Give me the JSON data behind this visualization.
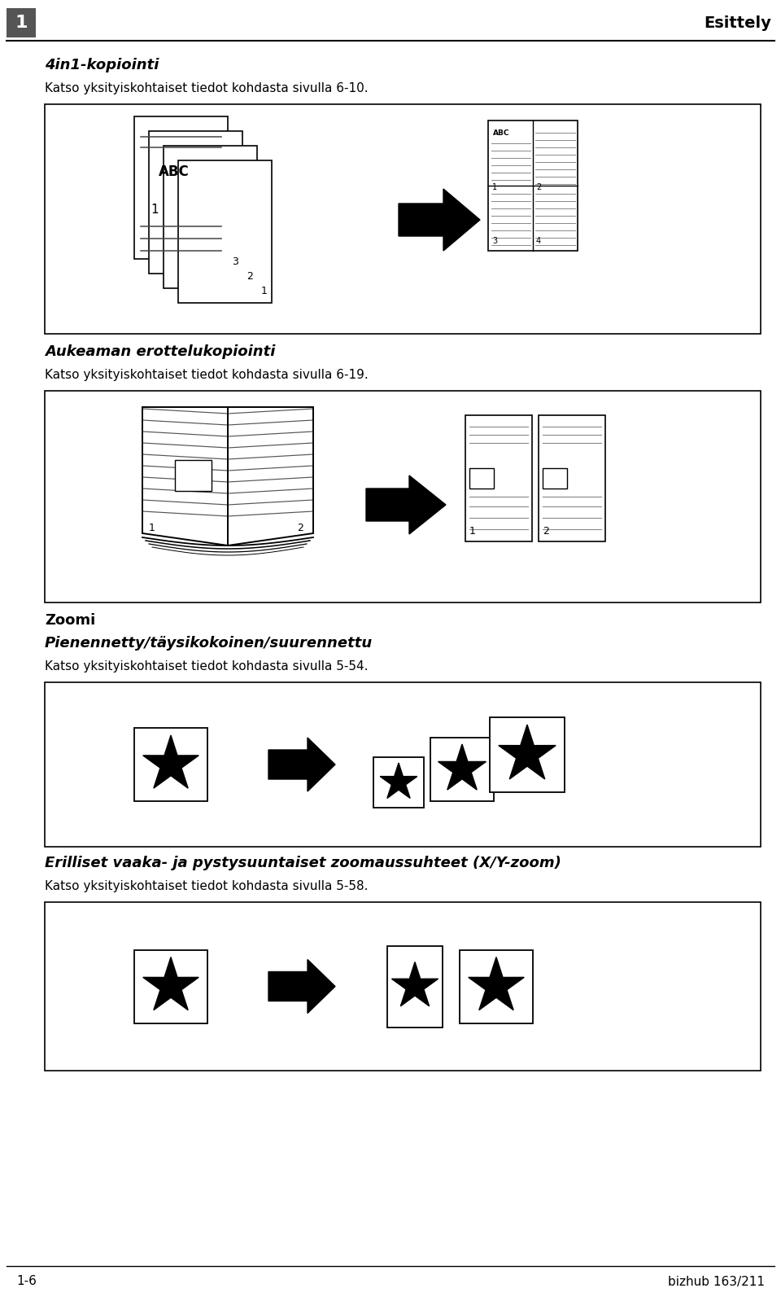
{
  "page_width": 9.6,
  "page_height": 15.93,
  "bg_color": "#ffffff",
  "header_number": "1",
  "header_title": "Esittely",
  "section1_title": "4in1-kopiointi",
  "section1_text": "Katso yksityiskohtaiset tiedot kohdasta sivulla 6-10.",
  "section2_title": "Aukeaman erottelukopiointi",
  "section2_text": "Katso yksityiskohtaiset tiedot kohdasta sivulla 6-19.",
  "section3_title_bold": "Zoomi",
  "section3_subtitle": "Pienennetty/täysikokoinen/suurennettu",
  "section3_text": "Katso yksityiskohtaiset tiedot kohdasta sivulla 5-54.",
  "section4_subtitle": "Erilliset vaaka- ja pystysuuntaiset zoomaussuhteet (X/Y-zoom)",
  "section4_text": "Katso yksityiskohtaiset tiedot kohdasta sivulla 5-58.",
  "footer_left": "1-6",
  "footer_right": "bizhub 163/211",
  "text_color": "#000000"
}
